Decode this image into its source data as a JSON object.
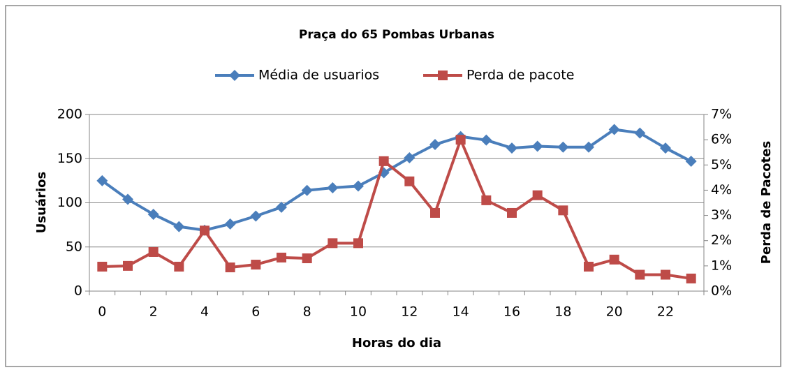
{
  "chart_data": {
    "type": "line",
    "title": "Praça do 65 Pombas Urbanas",
    "x_label": "Horas do dia",
    "y_label": "Usuários",
    "y2_label": "Perda de Pacotes",
    "categories": [
      0,
      null,
      2,
      null,
      4,
      null,
      6,
      null,
      8,
      null,
      10,
      null,
      12,
      null,
      14,
      null,
      16,
      null,
      18,
      null,
      20,
      null,
      22,
      null
    ],
    "ylim": [
      0,
      200
    ],
    "yticks": [
      0,
      50,
      100,
      150,
      200
    ],
    "y2lim": [
      0,
      7
    ],
    "y2ticks": [
      {
        "value": 0,
        "label": "0%"
      },
      {
        "value": 1,
        "label": "1%"
      },
      {
        "value": 2,
        "label": "2%"
      },
      {
        "value": 3,
        "label": "3%"
      },
      {
        "value": 4,
        "label": "4%"
      },
      {
        "value": 5,
        "label": "5%"
      },
      {
        "value": 6,
        "label": "6%"
      },
      {
        "value": 7,
        "label": "7%"
      }
    ],
    "grid": true,
    "legend": "top",
    "series": [
      {
        "name": "Média de usuarios",
        "color": "#4a7ebb",
        "marker": "diamond",
        "values": [
          125,
          104,
          87,
          73,
          69,
          76,
          85,
          95,
          114,
          117,
          119,
          134,
          151,
          166,
          175,
          171,
          162,
          164,
          163,
          163,
          183,
          179,
          162,
          147
        ]
      },
      {
        "name": "Perda de pacote",
        "color": "#be4b48",
        "marker": "square",
        "axis": "y2",
        "values": [
          0.97,
          1.0,
          1.55,
          0.97,
          2.4,
          0.94,
          1.05,
          1.33,
          1.3,
          1.9,
          1.9,
          5.15,
          4.35,
          3.1,
          6.0,
          3.6,
          3.1,
          3.8,
          3.2,
          0.97,
          1.25,
          0.65,
          0.65,
          0.5
        ]
      }
    ]
  }
}
